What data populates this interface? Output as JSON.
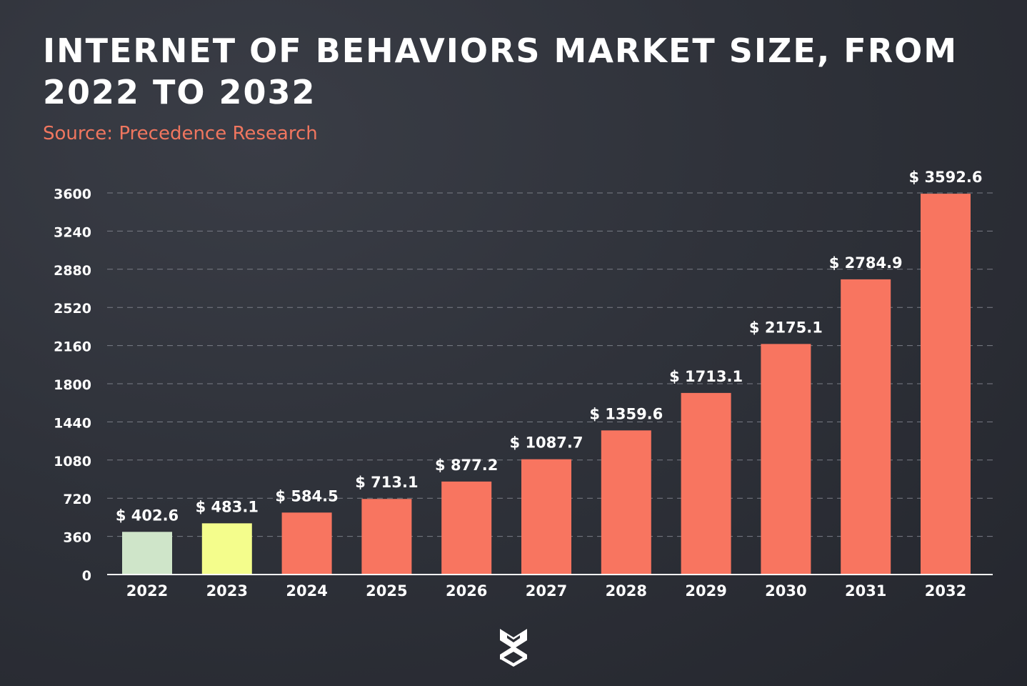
{
  "header": {
    "title": "INTERNET OF BEHAVIORS MARKET SIZE, FROM 2022 TO 2032",
    "source": "Source: Precedence Research"
  },
  "colors": {
    "accent": "#f87560",
    "bar_2022": "#cfe5c9",
    "bar_2023": "#f4fd8c",
    "source_text": "#f0765f",
    "text": "#ffffff"
  },
  "logo": {
    "icon": "sm-logo-icon"
  },
  "chart_data": {
    "type": "bar",
    "title": "INTERNET OF BEHAVIORS MARKET SIZE, FROM 2022 TO 2032",
    "xlabel": "",
    "ylabel": "",
    "categories": [
      "2022",
      "2023",
      "2024",
      "2025",
      "2026",
      "2027",
      "2028",
      "2029",
      "2030",
      "2031",
      "2032"
    ],
    "values": [
      402.6,
      483.1,
      584.5,
      713.1,
      877.2,
      1087.7,
      1359.6,
      1713.1,
      2175.1,
      2784.9,
      3592.6
    ],
    "data_labels": [
      "$ 402.6",
      "$ 483.1",
      "$ 584.5",
      "$ 713.1",
      "$ 877.2",
      "$ 1087.7",
      "$ 1359.6",
      "$ 1713.1",
      "$ 2175.1",
      "$ 2784.9",
      "$ 3592.6"
    ],
    "bar_colors": [
      "#cfe5c9",
      "#f4fd8c",
      "#f87560",
      "#f87560",
      "#f87560",
      "#f87560",
      "#f87560",
      "#f87560",
      "#f87560",
      "#f87560",
      "#f87560"
    ],
    "yticks": [
      0,
      360,
      720,
      1080,
      1440,
      1800,
      2160,
      2520,
      2880,
      3240,
      3600
    ],
    "ylim": [
      0,
      3600
    ],
    "grid": true,
    "grid_style": "dashed",
    "legend": "none"
  }
}
